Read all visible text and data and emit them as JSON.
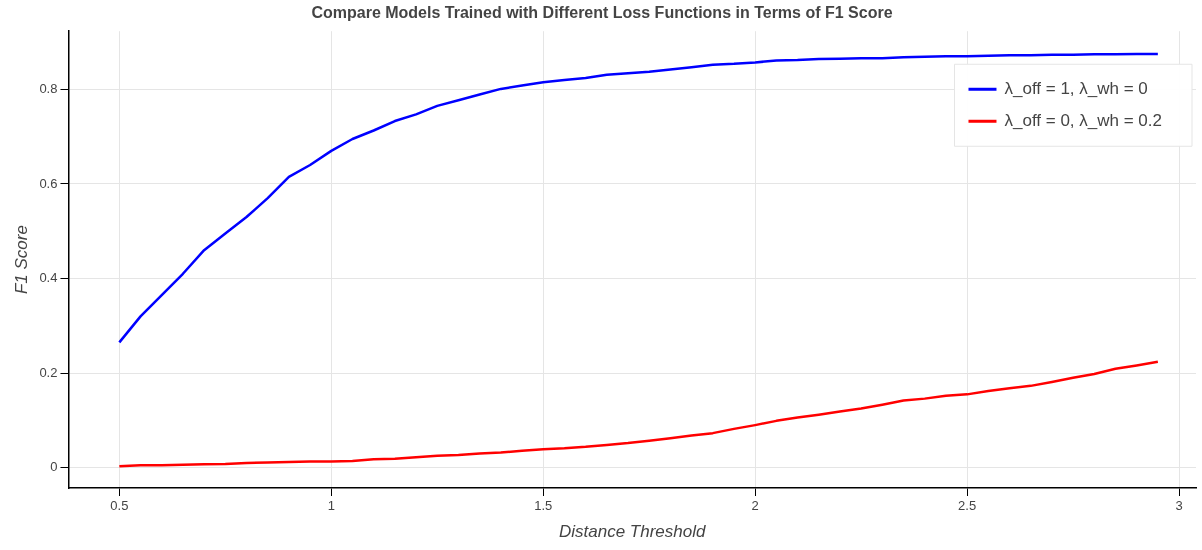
{
  "chart_data": {
    "type": "line",
    "title": "Compare Models Trained with Different Loss Functions in Terms of F1 Score",
    "xlabel": "Distance Threshold",
    "ylabel": "F1 Score",
    "x": [
      0.5,
      0.55,
      0.6,
      0.65,
      0.7,
      0.75,
      0.8,
      0.85,
      0.9,
      0.95,
      1.0,
      1.05,
      1.1,
      1.15,
      1.2,
      1.25,
      1.3,
      1.35,
      1.4,
      1.45,
      1.5,
      1.55,
      1.6,
      1.65,
      1.7,
      1.75,
      1.8,
      1.85,
      1.9,
      1.95,
      2.0,
      2.05,
      2.1,
      2.15,
      2.2,
      2.25,
      2.3,
      2.35,
      2.4,
      2.45,
      2.5,
      2.55,
      2.6,
      2.65,
      2.7,
      2.75,
      2.8,
      2.85,
      2.9,
      2.95
    ],
    "series": [
      {
        "name": "λ_off = 1, λ_wh = 0",
        "color": "#0000ff",
        "values": [
          0.265,
          0.32,
          0.365,
          0.41,
          0.46,
          0.495,
          0.53,
          0.57,
          0.615,
          0.64,
          0.67,
          0.695,
          0.713,
          0.733,
          0.747,
          0.765,
          0.777,
          0.789,
          0.801,
          0.808,
          0.815,
          0.82,
          0.824,
          0.831,
          0.834,
          0.837,
          0.842,
          0.847,
          0.852,
          0.854,
          0.857,
          0.861,
          0.862,
          0.864,
          0.865,
          0.866,
          0.866,
          0.868,
          0.869,
          0.87,
          0.87,
          0.871,
          0.872,
          0.872,
          0.873,
          0.873,
          0.874,
          0.874,
          0.875,
          0.875
        ]
      },
      {
        "name": "λ_off = 0, λ_wh = 0.2",
        "color": "#ff0000",
        "values": [
          0.003,
          0.005,
          0.005,
          0.006,
          0.007,
          0.008,
          0.01,
          0.011,
          0.012,
          0.013,
          0.013,
          0.014,
          0.018,
          0.019,
          0.022,
          0.025,
          0.027,
          0.03,
          0.032,
          0.036,
          0.039,
          0.041,
          0.044,
          0.048,
          0.052,
          0.057,
          0.062,
          0.068,
          0.073,
          0.082,
          0.09,
          0.099,
          0.106,
          0.112,
          0.119,
          0.125,
          0.133,
          0.142,
          0.146,
          0.152,
          0.155,
          0.162,
          0.168,
          0.173,
          0.181,
          0.19,
          0.198,
          0.209,
          0.216,
          0.224
        ]
      }
    ],
    "xlim": [
      0.38,
      3.04
    ],
    "xticks": [
      0.5,
      1,
      1.5,
      2,
      2.5,
      3
    ],
    "ylim": [
      -0.043,
      0.923
    ],
    "yticks": [
      0,
      0.2,
      0.4,
      0.6,
      0.8
    ],
    "grid": true,
    "legend": "top right",
    "marker": "none",
    "line_style": "solid"
  }
}
